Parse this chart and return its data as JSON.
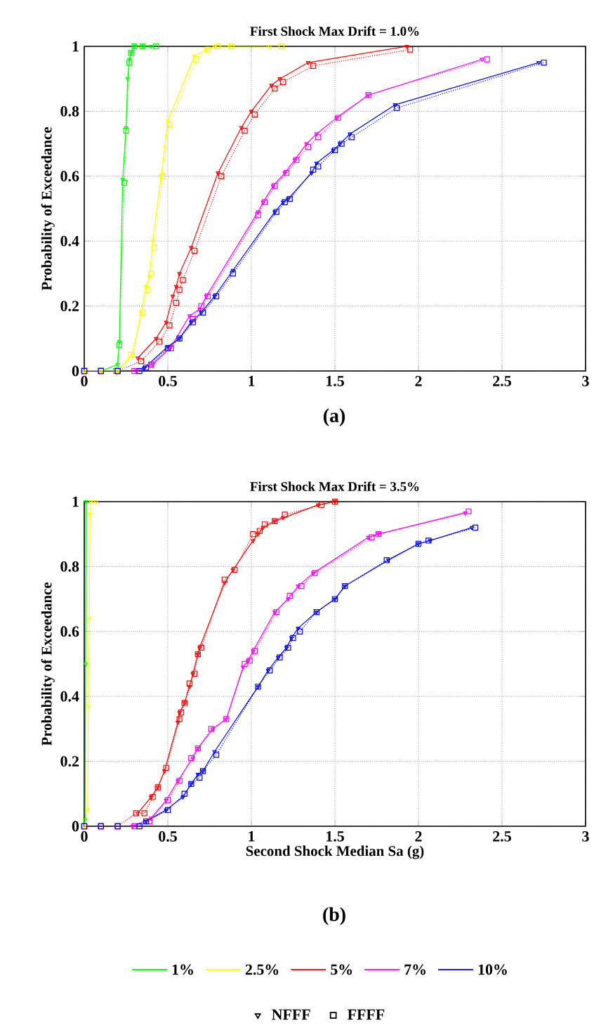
{
  "chart_data": [
    {
      "type": "line",
      "title": "First Shock Max Drift = 1.0%",
      "ylabel": "Probability of Exceedance",
      "xlim": [
        0,
        3
      ],
      "ylim": [
        0,
        1
      ],
      "xticks": [
        0,
        0.5,
        1,
        1.5,
        2,
        2.5,
        3
      ],
      "yticks": [
        0,
        0.2,
        0.4,
        0.6,
        0.8,
        1
      ],
      "grid": true,
      "annotations": [
        "(a)"
      ],
      "series": [
        {
          "color": "#00ff00",
          "marker": "triangle",
          "line_style": "solid",
          "x": [
            0,
            0.1,
            0.2,
            0.21,
            0.23,
            0.25,
            0.26,
            0.27,
            0.28,
            0.3,
            0.35,
            0.4
          ],
          "values": [
            0,
            0,
            0.02,
            0.09,
            0.59,
            0.75,
            0.9,
            0.96,
            0.98,
            1,
            1,
            1
          ]
        },
        {
          "color": "#ffff00",
          "marker": "triangle",
          "line_style": "solid",
          "x": [
            0,
            0.1,
            0.2,
            0.29,
            0.34,
            0.37,
            0.39,
            0.41,
            0.46,
            0.5,
            0.66,
            0.73,
            0.78,
            0.87,
            1.11
          ],
          "values": [
            0,
            0,
            0,
            0.05,
            0.18,
            0.26,
            0.29,
            0.4,
            0.6,
            0.77,
            0.97,
            0.99,
            1,
            1,
            1
          ]
        },
        {
          "color": "#ff0000",
          "marker": "triangle",
          "line_style": "solid",
          "x": [
            0.32,
            0.43,
            0.49,
            0.53,
            0.55,
            0.57,
            0.64,
            0.8,
            0.94,
            1.0,
            1.12,
            1.17,
            1.34,
            1.93
          ],
          "values": [
            0.04,
            0.1,
            0.15,
            0.23,
            0.26,
            0.3,
            0.38,
            0.61,
            0.75,
            0.8,
            0.88,
            0.9,
            0.95,
            1
          ]
        },
        {
          "color": "#ff00ff",
          "marker": "triangle",
          "line_style": "solid",
          "x": [
            0.31,
            0.41,
            0.52,
            0.63,
            0.69,
            0.73,
            1.04,
            1.07,
            1.13,
            1.2,
            1.26,
            1.33,
            1.39,
            1.51,
            1.7,
            2.38
          ],
          "values": [
            0,
            0.02,
            0.075,
            0.17,
            0.19,
            0.23,
            0.49,
            0.52,
            0.57,
            0.61,
            0.65,
            0.7,
            0.73,
            0.78,
            0.85,
            0.96
          ]
        },
        {
          "color": "#0000ff",
          "marker": "triangle",
          "line_style": "solid",
          "x": [
            0.36,
            0.5,
            0.57,
            0.64,
            0.7,
            0.78,
            0.89,
            1.14,
            1.19,
            1.22,
            1.36,
            1.39,
            1.49,
            1.53,
            1.59,
            1.86,
            2.72
          ],
          "values": [
            0.01,
            0.075,
            0.1,
            0.15,
            0.18,
            0.23,
            0.31,
            0.49,
            0.52,
            0.53,
            0.61,
            0.64,
            0.68,
            0.7,
            0.73,
            0.82,
            0.95
          ]
        },
        {
          "color": "#00ff00",
          "marker": "square",
          "line_style": "dotted",
          "x": [
            0,
            0.1,
            0.19,
            0.21,
            0.24,
            0.25,
            0.27,
            0.28,
            0.3,
            0.35,
            0.43
          ],
          "values": [
            0,
            0,
            0,
            0.08,
            0.58,
            0.74,
            0.95,
            0.98,
            1,
            1,
            1
          ]
        },
        {
          "color": "#ffff00",
          "marker": "square",
          "line_style": "dotted",
          "x": [
            0,
            0.1,
            0.2,
            0.28,
            0.35,
            0.38,
            0.4,
            0.42,
            0.47,
            0.51,
            0.67,
            0.74,
            0.8,
            0.88,
            1.18
          ],
          "values": [
            0,
            0,
            0,
            0.05,
            0.18,
            0.25,
            0.3,
            0.38,
            0.6,
            0.76,
            0.96,
            0.99,
            1,
            1,
            1
          ]
        },
        {
          "color": "#ff0000",
          "marker": "square",
          "line_style": "dotted",
          "x": [
            0,
            0.1,
            0.2,
            0.34,
            0.45,
            0.51,
            0.55,
            0.57,
            0.59,
            0.66,
            0.82,
            0.96,
            1.02,
            1.14,
            1.19,
            1.37,
            1.95
          ],
          "values": [
            0,
            0,
            0,
            0.03,
            0.09,
            0.14,
            0.21,
            0.25,
            0.28,
            0.37,
            0.6,
            0.74,
            0.79,
            0.87,
            0.89,
            0.94,
            0.99
          ]
        },
        {
          "color": "#ff00ff",
          "marker": "square",
          "line_style": "dotted",
          "x": [
            0,
            0.1,
            0.2,
            0.3,
            0.4,
            0.52,
            0.65,
            0.7,
            0.74,
            1.04,
            1.08,
            1.14,
            1.21,
            1.27,
            1.34,
            1.4,
            1.52,
            1.7,
            2.41
          ],
          "values": [
            0,
            0,
            0,
            0,
            0.02,
            0.07,
            0.16,
            0.2,
            0.23,
            0.48,
            0.52,
            0.57,
            0.61,
            0.65,
            0.69,
            0.72,
            0.78,
            0.85,
            0.96
          ]
        },
        {
          "color": "#0000ff",
          "marker": "square",
          "line_style": "dotted",
          "x": [
            0,
            0.1,
            0.2,
            0.33,
            0.37,
            0.5,
            0.57,
            0.65,
            0.71,
            0.79,
            0.89,
            1.15,
            1.2,
            1.23,
            1.37,
            1.4,
            1.5,
            1.54,
            1.6,
            1.87,
            2.75
          ],
          "values": [
            0,
            0,
            0,
            0,
            0.01,
            0.07,
            0.1,
            0.15,
            0.18,
            0.23,
            0.3,
            0.49,
            0.52,
            0.53,
            0.62,
            0.63,
            0.68,
            0.7,
            0.72,
            0.81,
            0.95
          ]
        }
      ]
    },
    {
      "type": "line",
      "title": "First Shock Max Drift = 3.5%",
      "xlabel": "Second Shock Median Sa (g)",
      "ylabel": "Probability of Exceedance",
      "xlim": [
        0,
        3
      ],
      "ylim": [
        0,
        1
      ],
      "xticks": [
        0,
        0.5,
        1,
        1.5,
        2,
        2.5,
        3
      ],
      "yticks": [
        0,
        0.2,
        0.4,
        0.6,
        0.8,
        1
      ],
      "grid": true,
      "legend": "bottom",
      "annotations": [
        "(b)",
        "NFFF",
        "FFFF"
      ],
      "series": [
        {
          "name": "1%",
          "color": "#00ff00",
          "marker": "triangle",
          "line_style": "solid",
          "x": [
            0,
            0.005,
            0.008,
            0.01
          ],
          "values": [
            0,
            0.02,
            0.5,
            1
          ]
        },
        {
          "name": "2.5%",
          "color": "#ffff00",
          "marker": "triangle",
          "line_style": "solid",
          "x": [
            0,
            0.02,
            0.025,
            0.03,
            0.035,
            0.04,
            0.07
          ],
          "values": [
            0,
            0.05,
            0.37,
            0.64,
            0.96,
            1,
            1
          ]
        },
        {
          "name": "5%",
          "color": "#ff0000",
          "marker": "triangle",
          "line_style": "solid",
          "x": [
            0.32,
            0.4,
            0.44,
            0.48,
            0.56,
            0.57,
            0.6,
            0.63,
            0.65,
            0.68,
            0.69,
            0.84,
            0.89,
            1.01,
            1.04,
            1.07,
            1.14,
            1.19,
            1.4,
            1.5
          ],
          "values": [
            0.04,
            0.09,
            0.12,
            0.17,
            0.32,
            0.35,
            0.38,
            0.43,
            0.47,
            0.53,
            0.55,
            0.75,
            0.79,
            0.88,
            0.9,
            0.92,
            0.94,
            0.95,
            0.99,
            1
          ]
        },
        {
          "name": "7%",
          "color": "#ff00ff",
          "marker": "triangle",
          "line_style": "solid",
          "x": [
            0.29,
            0.4,
            0.49,
            0.56,
            0.65,
            0.68,
            0.77,
            0.85,
            0.95,
            0.98,
            1.01,
            1.14,
            1.22,
            1.28,
            1.37,
            1.7,
            1.76,
            2.28
          ],
          "values": [
            0,
            0.025,
            0.08,
            0.14,
            0.21,
            0.24,
            0.3,
            0.33,
            0.49,
            0.51,
            0.54,
            0.66,
            0.7,
            0.74,
            0.78,
            0.89,
            0.9,
            0.965
          ]
        },
        {
          "name": "10%",
          "color": "#0000ff",
          "marker": "triangle",
          "line_style": "solid",
          "x": [
            0.37,
            0.49,
            0.59,
            0.64,
            0.68,
            0.71,
            0.78,
            1.04,
            1.1,
            1.16,
            1.21,
            1.24,
            1.28,
            1.39,
            1.5,
            1.56,
            1.82,
            2.0,
            2.07,
            2.32
          ],
          "values": [
            0.015,
            0.05,
            0.09,
            0.13,
            0.16,
            0.17,
            0.23,
            0.43,
            0.48,
            0.52,
            0.55,
            0.58,
            0.61,
            0.66,
            0.7,
            0.74,
            0.82,
            0.87,
            0.88,
            0.92
          ]
        },
        {
          "color": "#ff0000",
          "marker": "square",
          "line_style": "dotted",
          "x": [
            0,
            0.1,
            0.2,
            0.31,
            0.36,
            0.41,
            0.44,
            0.49,
            0.57,
            0.58,
            0.6,
            0.63,
            0.66,
            0.68,
            0.7,
            0.84,
            0.9,
            1.01,
            1.05,
            1.08,
            1.14,
            1.2,
            1.42,
            1.5
          ],
          "values": [
            0,
            0,
            0,
            0.04,
            0.04,
            0.09,
            0.12,
            0.18,
            0.33,
            0.35,
            0.38,
            0.44,
            0.47,
            0.53,
            0.55,
            0.76,
            0.79,
            0.9,
            0.91,
            0.93,
            0.94,
            0.96,
            0.99,
            1
          ]
        },
        {
          "color": "#ff00ff",
          "marker": "square",
          "line_style": "dotted",
          "x": [
            0,
            0.1,
            0.2,
            0.3,
            0.39,
            0.5,
            0.57,
            0.64,
            0.68,
            0.76,
            0.85,
            0.96,
            0.99,
            1.02,
            1.15,
            1.23,
            1.3,
            1.38,
            1.72,
            1.76,
            2.3
          ],
          "values": [
            0,
            0,
            0,
            0,
            0.015,
            0.08,
            0.14,
            0.21,
            0.24,
            0.3,
            0.33,
            0.5,
            0.51,
            0.54,
            0.66,
            0.71,
            0.74,
            0.78,
            0.89,
            0.9,
            0.97
          ]
        },
        {
          "color": "#0000ff",
          "marker": "square",
          "line_style": "dotted",
          "x": [
            0,
            0.1,
            0.2,
            0.33,
            0.37,
            0.5,
            0.6,
            0.64,
            0.69,
            0.71,
            0.79,
            1.04,
            1.11,
            1.17,
            1.22,
            1.25,
            1.29,
            1.39,
            1.5,
            1.56,
            1.81,
            2.0,
            2.06,
            2.34
          ],
          "values": [
            0,
            0,
            0,
            0,
            0.015,
            0.05,
            0.1,
            0.13,
            0.15,
            0.17,
            0.22,
            0.43,
            0.48,
            0.52,
            0.55,
            0.58,
            0.6,
            0.66,
            0.7,
            0.74,
            0.82,
            0.87,
            0.88,
            0.92
          ]
        }
      ]
    }
  ]
}
